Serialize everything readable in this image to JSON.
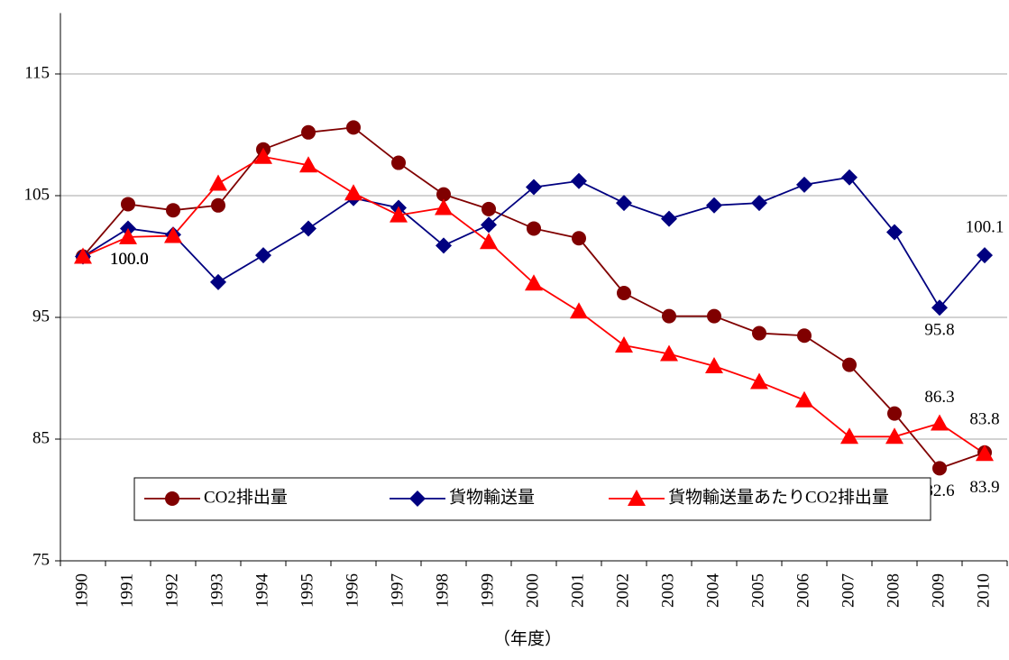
{
  "chart_data": {
    "type": "line",
    "x_label": "（年度）",
    "categories": [
      "1990",
      "1991",
      "1992",
      "1993",
      "1994",
      "1995",
      "1996",
      "1997",
      "1998",
      "1999",
      "2000",
      "2001",
      "2002",
      "2003",
      "2004",
      "2005",
      "2006",
      "2007",
      "2008",
      "2009",
      "2010"
    ],
    "series": [
      {
        "name": "CO2排出量",
        "color": "#800000",
        "marker": "circle",
        "values": [
          100.0,
          104.3,
          103.8,
          104.2,
          108.8,
          110.2,
          110.6,
          107.7,
          105.1,
          103.9,
          102.3,
          101.5,
          97.0,
          95.1,
          95.1,
          93.7,
          93.5,
          91.1,
          87.1,
          82.6,
          83.9
        ],
        "value_labels": [
          "100.0",
          null,
          null,
          null,
          null,
          null,
          null,
          null,
          null,
          null,
          null,
          null,
          null,
          null,
          null,
          null,
          null,
          null,
          null,
          "82.6",
          "83.9"
        ]
      },
      {
        "name": "貨物輸送量",
        "color": "#000080",
        "marker": "diamond",
        "values": [
          100.0,
          102.3,
          101.8,
          97.9,
          100.1,
          102.3,
          104.8,
          104.0,
          100.9,
          102.6,
          105.7,
          106.2,
          104.4,
          103.1,
          104.2,
          104.4,
          105.9,
          106.5,
          102.0,
          95.8,
          100.1
        ],
        "value_labels": [
          "100.0",
          null,
          null,
          null,
          null,
          null,
          null,
          null,
          null,
          null,
          null,
          null,
          null,
          null,
          null,
          null,
          null,
          null,
          null,
          "95.8",
          "100.1"
        ]
      },
      {
        "name": "貨物輸送量あたりCO2排出量",
        "color": "#ff0000",
        "marker": "triangle",
        "values": [
          100.0,
          101.6,
          101.7,
          106.0,
          108.2,
          107.5,
          105.2,
          103.4,
          104.0,
          101.2,
          97.8,
          95.5,
          92.7,
          92.0,
          91.0,
          89.7,
          88.2,
          85.2,
          85.2,
          86.3,
          83.8
        ],
        "value_labels": [
          "100.0",
          null,
          null,
          null,
          null,
          null,
          null,
          null,
          null,
          null,
          null,
          null,
          null,
          null,
          null,
          null,
          null,
          null,
          null,
          "86.3",
          "83.8"
        ]
      }
    ],
    "ylim": [
      75,
      120
    ],
    "yticks": [
      75,
      85,
      95,
      105,
      115
    ],
    "grid": true,
    "legend": "bottom"
  }
}
